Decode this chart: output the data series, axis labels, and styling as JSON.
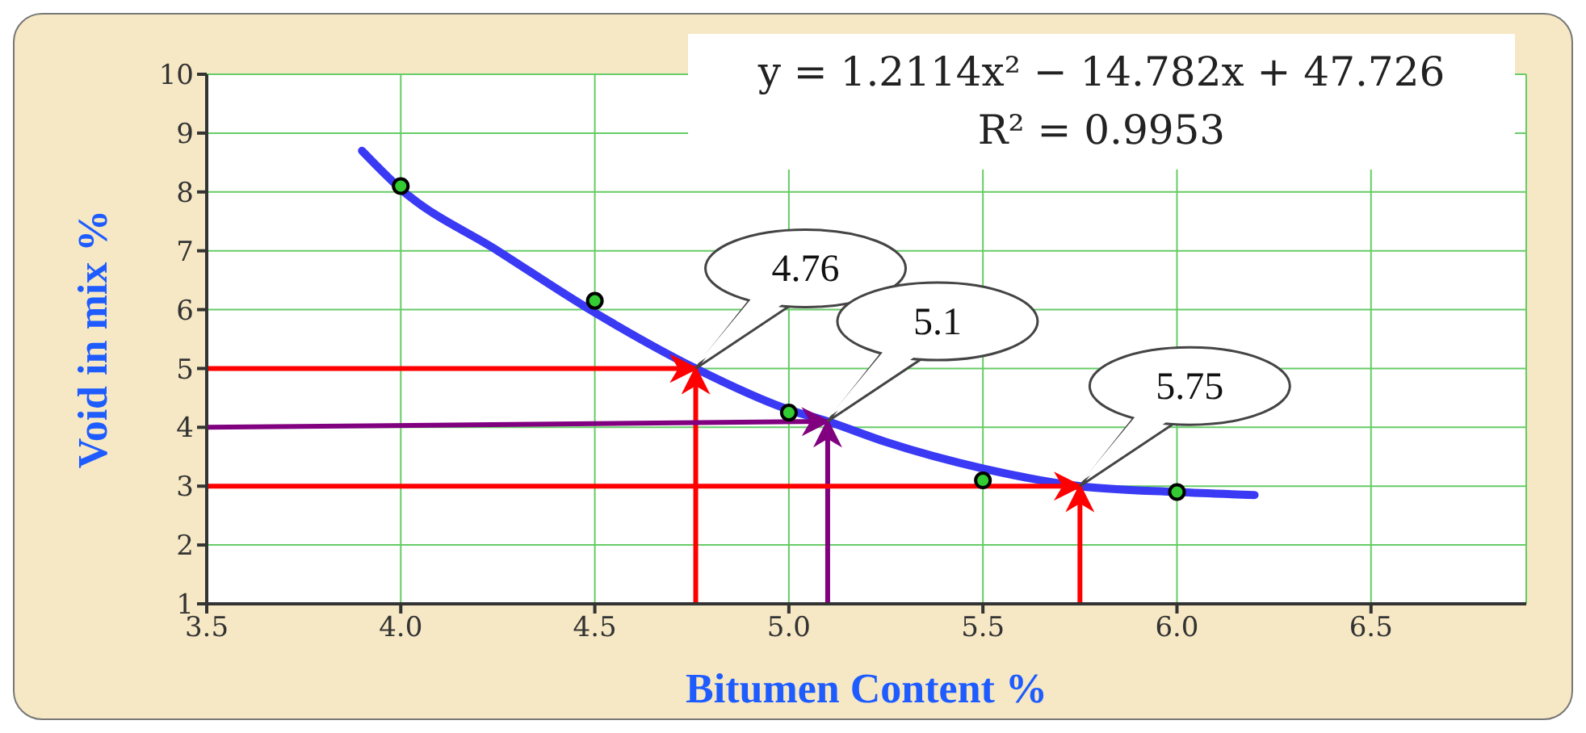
{
  "chart_data": {
    "type": "scatter",
    "xlabel": "Bitumen Content %",
    "ylabel": "Void in mix %",
    "xlim": [
      3.5,
      6.9
    ],
    "ylim": [
      1,
      10
    ],
    "xticks": [
      {
        "value": 3.5,
        "label": "3.5"
      },
      {
        "value": 4,
        "label": "4.0"
      },
      {
        "value": 4.5,
        "label": "4.5"
      },
      {
        "value": 5,
        "label": "5.0"
      },
      {
        "value": 5.5,
        "label": "5.5"
      },
      {
        "value": 6,
        "label": "6.0"
      },
      {
        "value": 6.5,
        "label": "6.5"
      }
    ],
    "yticks": [
      1,
      2,
      3,
      4,
      5,
      6,
      7,
      8,
      9,
      10
    ],
    "grid": true,
    "series": [
      {
        "marker": "circle",
        "color": "#33cc33",
        "x": [
          4,
          4.5,
          5,
          5.5,
          6
        ],
        "values": [
          8.1,
          6.15,
          4.25,
          3.1,
          2.9
        ]
      },
      {
        "type": "line",
        "marker": "none",
        "color": "#3a3af5",
        "x": [
          3.9,
          4,
          4.25,
          4.5,
          4.76,
          5,
          5.1,
          5.25,
          5.5,
          5.75,
          6,
          6.2
        ],
        "values": [
          8.7,
          8.05,
          7,
          5.95,
          5,
          4.3,
          4.1,
          3.75,
          3.3,
          3,
          2.9,
          2.85
        ]
      },
      {
        "type": "line",
        "marker": "none",
        "color": "#ff0000",
        "x": [
          3.5,
          4.76
        ],
        "values": [
          5,
          5
        ]
      },
      {
        "type": "line",
        "marker": "none",
        "color": "#ff0000",
        "x": [
          4.76,
          4.76
        ],
        "values": [
          1,
          5
        ]
      },
      {
        "type": "line",
        "marker": "none",
        "color": "#800080",
        "x": [
          3.5,
          5.1
        ],
        "values": [
          4,
          4.1
        ]
      },
      {
        "type": "line",
        "marker": "none",
        "color": "#800080",
        "x": [
          5.1,
          5.1
        ],
        "values": [
          1,
          4.1
        ]
      },
      {
        "type": "line",
        "marker": "none",
        "color": "#ff0000",
        "x": [
          3.5,
          5.75
        ],
        "values": [
          3,
          3
        ]
      },
      {
        "type": "line",
        "marker": "none",
        "color": "#ff0000",
        "x": [
          5.75,
          5.75
        ],
        "values": [
          1,
          3
        ]
      }
    ],
    "annotations": [
      "y = 1.2114x² − 14.782x + 47.726",
      "R² = 0.9953",
      {
        "text": "4.76",
        "x": 4.76,
        "y": 5
      },
      {
        "text": "5.1",
        "x": 5.1,
        "y": 4.1
      },
      {
        "text": "5.75",
        "x": 5.75,
        "y": 3
      }
    ]
  }
}
